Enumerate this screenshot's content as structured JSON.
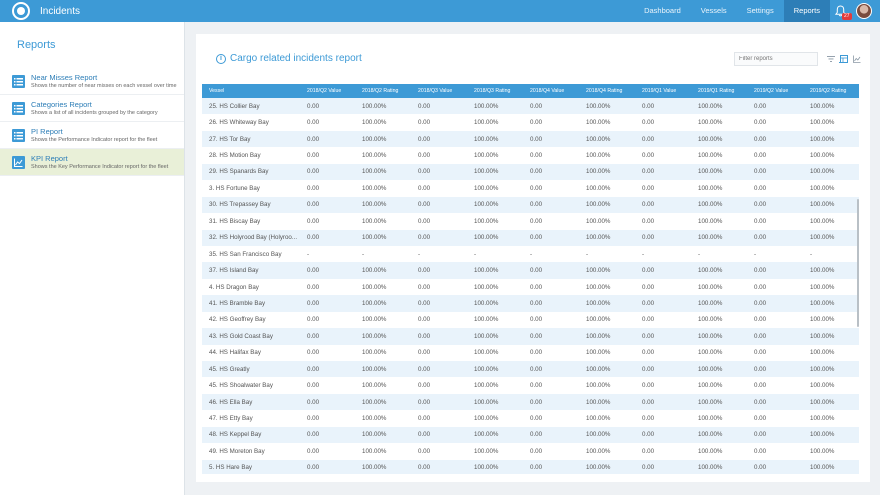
{
  "app": {
    "title": "Incidents",
    "notification_count": "27"
  },
  "nav": {
    "items": [
      "Dashboard",
      "Vessels",
      "Settings",
      "Reports"
    ],
    "active": "Reports"
  },
  "sidebar": {
    "title": "Reports",
    "items": [
      {
        "name": "Near Misses Report",
        "description": "Shows the number of near misses on each vessel over time"
      },
      {
        "name": "Categories Report",
        "description": "Shows a list of all incidents grouped by the category"
      },
      {
        "name": "PI Report",
        "description": "Shows the Performance Indicator report for the fleet"
      },
      {
        "name": "KPI Report",
        "description": "Shows the Key Performance Indicator report for the fleet"
      }
    ]
  },
  "report": {
    "title": "Cargo related incidents report",
    "filter_placeholder": "Filter reports"
  },
  "table": {
    "columns": [
      "Vessel",
      "2018/Q2 Value",
      "2018/Q2 Rating",
      "2018/Q3 Value",
      "2018/Q3 Rating",
      "2018/Q4 Value",
      "2018/Q4 Rating",
      "2019/Q1 Value",
      "2019/Q1 Rating",
      "2019/Q2 Value",
      "2019/Q2 Rating"
    ],
    "rows": [
      [
        "25. HS Collier Bay",
        "0.00",
        "100.00%",
        "0.00",
        "100.00%",
        "0.00",
        "100.00%",
        "0.00",
        "100.00%",
        "0.00",
        "100.00%"
      ],
      [
        "26. HS Whiteway Bay",
        "0.00",
        "100.00%",
        "0.00",
        "100.00%",
        "0.00",
        "100.00%",
        "0.00",
        "100.00%",
        "0.00",
        "100.00%"
      ],
      [
        "27. HS Tor Bay",
        "0.00",
        "100.00%",
        "0.00",
        "100.00%",
        "0.00",
        "100.00%",
        "0.00",
        "100.00%",
        "0.00",
        "100.00%"
      ],
      [
        "28. HS Motion Bay",
        "0.00",
        "100.00%",
        "0.00",
        "100.00%",
        "0.00",
        "100.00%",
        "0.00",
        "100.00%",
        "0.00",
        "100.00%"
      ],
      [
        "29. HS Spanards Bay",
        "0.00",
        "100.00%",
        "0.00",
        "100.00%",
        "0.00",
        "100.00%",
        "0.00",
        "100.00%",
        "0.00",
        "100.00%"
      ],
      [
        "3. HS Fortune Bay",
        "0.00",
        "100.00%",
        "0.00",
        "100.00%",
        "0.00",
        "100.00%",
        "0.00",
        "100.00%",
        "0.00",
        "100.00%"
      ],
      [
        "30. HS Trepassey Bay",
        "0.00",
        "100.00%",
        "0.00",
        "100.00%",
        "0.00",
        "100.00%",
        "0.00",
        "100.00%",
        "0.00",
        "100.00%"
      ],
      [
        "31. HS Biscay Bay",
        "0.00",
        "100.00%",
        "0.00",
        "100.00%",
        "0.00",
        "100.00%",
        "0.00",
        "100.00%",
        "0.00",
        "100.00%"
      ],
      [
        "32. HS Holyrood Bay (Holyroo...",
        "0.00",
        "100.00%",
        "0.00",
        "100.00%",
        "0.00",
        "100.00%",
        "0.00",
        "100.00%",
        "0.00",
        "100.00%"
      ],
      [
        "35. HS San Francisco Bay",
        "-",
        "-",
        "-",
        "-",
        "-",
        "-",
        "-",
        "-",
        "-",
        "-"
      ],
      [
        "37. HS Island Bay",
        "0.00",
        "100.00%",
        "0.00",
        "100.00%",
        "0.00",
        "100.00%",
        "0.00",
        "100.00%",
        "0.00",
        "100.00%"
      ],
      [
        "4. HS Dragon Bay",
        "0.00",
        "100.00%",
        "0.00",
        "100.00%",
        "0.00",
        "100.00%",
        "0.00",
        "100.00%",
        "0.00",
        "100.00%"
      ],
      [
        "41. HS Bramble Bay",
        "0.00",
        "100.00%",
        "0.00",
        "100.00%",
        "0.00",
        "100.00%",
        "0.00",
        "100.00%",
        "0.00",
        "100.00%"
      ],
      [
        "42. HS Geoffrey Bay",
        "0.00",
        "100.00%",
        "0.00",
        "100.00%",
        "0.00",
        "100.00%",
        "0.00",
        "100.00%",
        "0.00",
        "100.00%"
      ],
      [
        "43. HS Gold Coast Bay",
        "0.00",
        "100.00%",
        "0.00",
        "100.00%",
        "0.00",
        "100.00%",
        "0.00",
        "100.00%",
        "0.00",
        "100.00%"
      ],
      [
        "44. HS Halifax Bay",
        "0.00",
        "100.00%",
        "0.00",
        "100.00%",
        "0.00",
        "100.00%",
        "0.00",
        "100.00%",
        "0.00",
        "100.00%"
      ],
      [
        "45. HS Greatly",
        "0.00",
        "100.00%",
        "0.00",
        "100.00%",
        "0.00",
        "100.00%",
        "0.00",
        "100.00%",
        "0.00",
        "100.00%"
      ],
      [
        "45. HS Shoalwater Bay",
        "0.00",
        "100.00%",
        "0.00",
        "100.00%",
        "0.00",
        "100.00%",
        "0.00",
        "100.00%",
        "0.00",
        "100.00%"
      ],
      [
        "46. HS Ella Bay",
        "0.00",
        "100.00%",
        "0.00",
        "100.00%",
        "0.00",
        "100.00%",
        "0.00",
        "100.00%",
        "0.00",
        "100.00%"
      ],
      [
        "47. HS Etty Bay",
        "0.00",
        "100.00%",
        "0.00",
        "100.00%",
        "0.00",
        "100.00%",
        "0.00",
        "100.00%",
        "0.00",
        "100.00%"
      ],
      [
        "48. HS Keppel Bay",
        "0.00",
        "100.00%",
        "0.00",
        "100.00%",
        "0.00",
        "100.00%",
        "0.00",
        "100.00%",
        "0.00",
        "100.00%"
      ],
      [
        "49. HS Moreton Bay",
        "0.00",
        "100.00%",
        "0.00",
        "100.00%",
        "0.00",
        "100.00%",
        "0.00",
        "100.00%",
        "0.00",
        "100.00%"
      ],
      [
        "5. HS Hare Bay",
        "0.00",
        "100.00%",
        "0.00",
        "100.00%",
        "0.00",
        "100.00%",
        "0.00",
        "100.00%",
        "0.00",
        "100.00%"
      ]
    ]
  },
  "colors": {
    "primary": "#3d9ad6",
    "active_nav": "#2d7eb7",
    "active_report": "#e9f0d8",
    "row_stripe": "#e9f3fb",
    "badge": "#e23b3b"
  },
  "icons": {
    "logo": "ship-wheel-icon",
    "notification": "bell-icon",
    "report": "list-icon",
    "kpi": "line-chart-icon",
    "info": "info-icon",
    "filter": "filter-icon",
    "table_view": "table-icon",
    "chart_view": "line-chart-icon"
  }
}
